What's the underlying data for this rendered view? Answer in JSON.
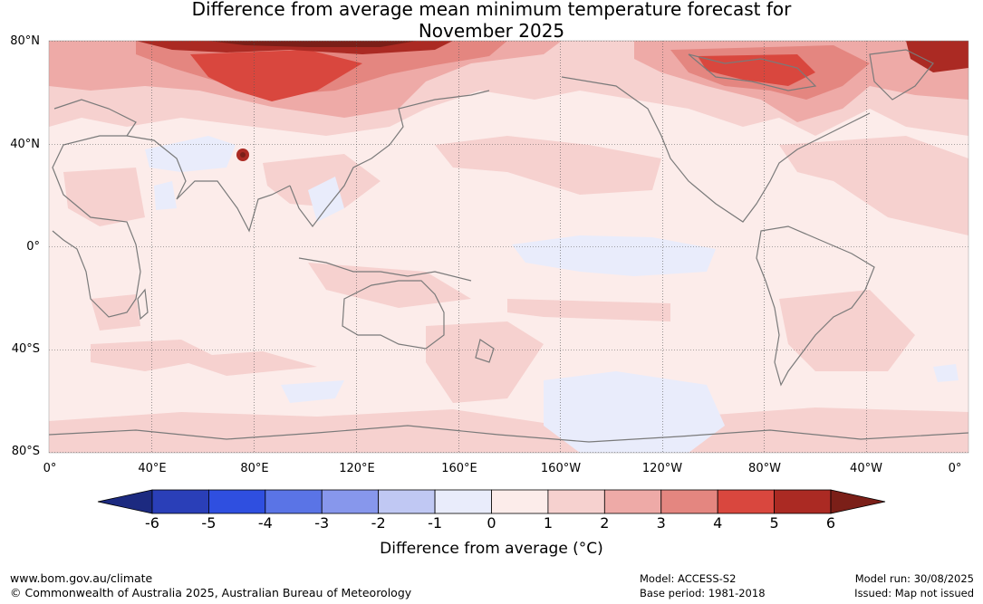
{
  "title": {
    "line1": "Difference from average mean minimum temperature forecast for",
    "line2": "November 2025"
  },
  "map": {
    "lat_labels": [
      "80°N",
      "40°N",
      "0°",
      "40°S",
      "80°S"
    ],
    "lon_labels": [
      "0°",
      "40°E",
      "80°E",
      "120°E",
      "160°E",
      "160°W",
      "120°W",
      "80°W",
      "40°W",
      "0°"
    ],
    "graticule": true
  },
  "colorbar": {
    "ticks": [
      "-6",
      "-5",
      "-4",
      "-3",
      "-2",
      "-1",
      "0",
      "1",
      "2",
      "3",
      "4",
      "5",
      "6"
    ],
    "colors": [
      "#1c2a80",
      "#2a3fb8",
      "#2f4fe0",
      "#5a74e6",
      "#8797ec",
      "#c0c8f3",
      "#e9ecfb",
      "#fcecea",
      "#f6d1cf",
      "#eeaaa7",
      "#e48680",
      "#d9473e",
      "#ab2a23",
      "#7b1f18"
    ],
    "label": "Difference from average (°C)"
  },
  "footer": {
    "website": "www.bom.gov.au/climate",
    "copyright": "© Commonwealth of Australia 2025, Australian Bureau of Meteorology",
    "model": "Model: ACCESS-S2",
    "base_period": "Base period: 1981-2018",
    "model_run": "Model run: 30/08/2025",
    "issued": "Issued: Map not issued"
  }
}
